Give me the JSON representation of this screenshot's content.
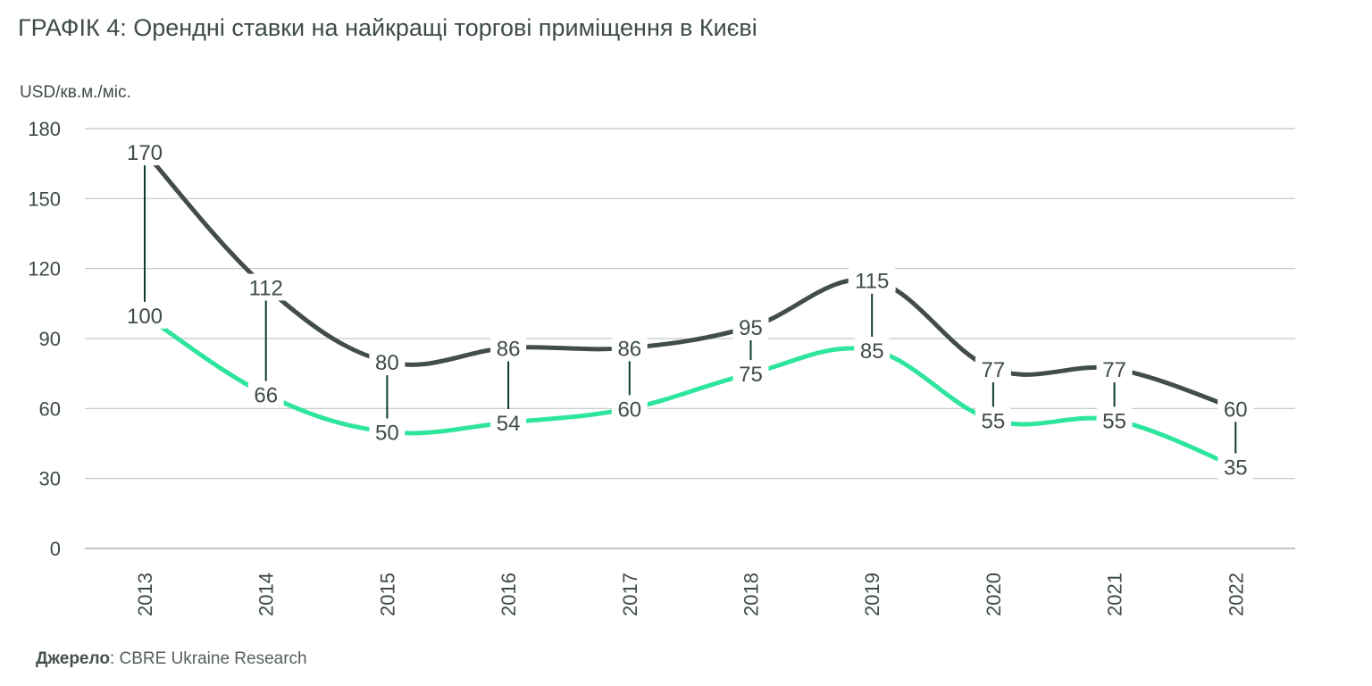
{
  "chart_data": {
    "type": "line",
    "title": "ГРАФІК 4: Орендні ставки на найкращі торгові приміщення в Києві",
    "ylabel": "USD/кв.м./міс.",
    "xlabel": "",
    "categories": [
      "2013",
      "2014",
      "2015",
      "2016",
      "2017",
      "2018",
      "2019",
      "2020",
      "2021",
      "2022"
    ],
    "yticks": [
      "0",
      "30",
      "60",
      "90",
      "120",
      "150",
      "180"
    ],
    "ylim": [
      0,
      180
    ],
    "grid": true,
    "legend": "none",
    "series": [
      {
        "name": "upper",
        "color": "#424d4b",
        "values": [
          170,
          112,
          80,
          86,
          86,
          95,
          115,
          77,
          77,
          60
        ],
        "labels": [
          "170",
          "112",
          "80",
          "86",
          "86",
          "95",
          "115",
          "77",
          "77",
          "60"
        ]
      },
      {
        "name": "lower",
        "color": "#2ee59d",
        "values": [
          100,
          66,
          50,
          54,
          60,
          75,
          85,
          55,
          55,
          35
        ],
        "labels": [
          "100",
          "66",
          "50",
          "54",
          "60",
          "75",
          "85",
          "55",
          "55",
          "35"
        ]
      }
    ],
    "connector_color": "#0f3d2a"
  },
  "footer": {
    "source_label": "Джерело",
    "source_text": ": CBRE Ukraine Research"
  }
}
